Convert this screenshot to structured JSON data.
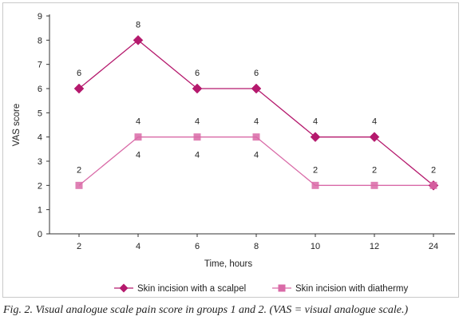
{
  "chart_data": {
    "type": "line",
    "categories": [
      "2",
      "4",
      "6",
      "8",
      "10",
      "12",
      "24"
    ],
    "xlabel": "Time, hours",
    "ylabel": "VAS score",
    "ylim": [
      0,
      9
    ],
    "yticks": [
      0,
      1,
      2,
      3,
      4,
      5,
      6,
      7,
      8,
      9
    ],
    "grid": false,
    "legend": "bottom",
    "series": [
      {
        "name": "Skin incision with a scalpel",
        "values": [
          6,
          8,
          6,
          6,
          4,
          4,
          2
        ],
        "data_labels": [
          "6",
          "8",
          "6",
          "6",
          "4",
          "4",
          "2"
        ],
        "label_position": "above",
        "color": "#b5196d",
        "marker": "diamond"
      },
      {
        "name": "Skin incision with diathermy",
        "values": [
          2,
          4,
          4,
          4,
          2,
          2,
          2
        ],
        "data_labels_above": [
          "2",
          "4",
          "4",
          "4",
          "2",
          "2",
          ""
        ],
        "data_labels_below": [
          "",
          "4",
          "4",
          "4",
          "",
          "",
          ""
        ],
        "color": "#d96aa7",
        "marker": "square"
      }
    ]
  },
  "caption": "Fig. 2. Visual analogue scale pain score in groups 1 and 2. (VAS = visual analogue scale.)"
}
